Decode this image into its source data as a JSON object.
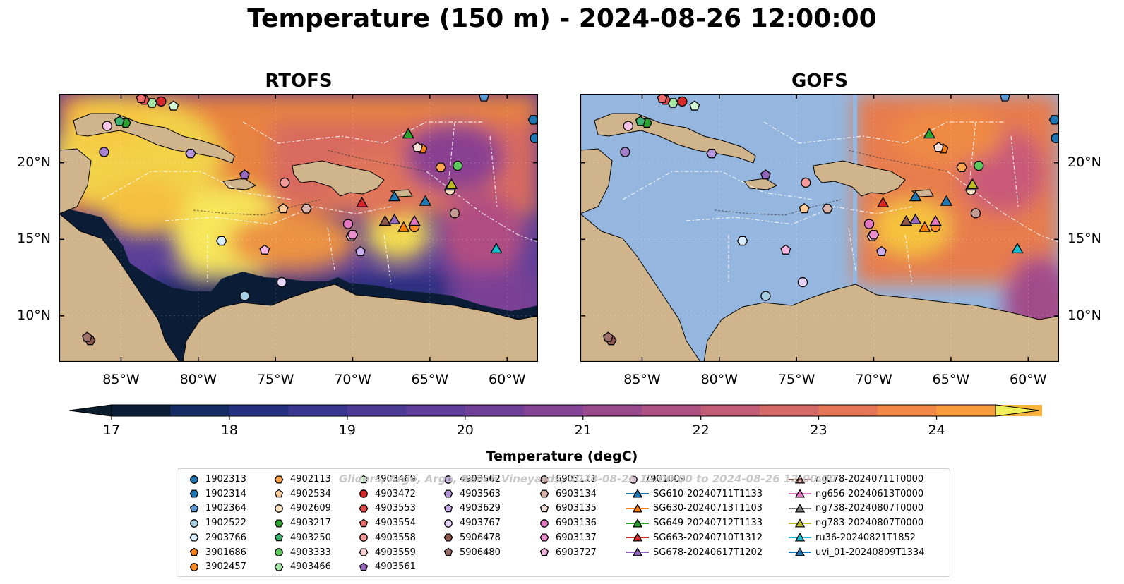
{
  "title": "Temperature (150 m) - 2024-08-26 12:00:00",
  "panels": [
    {
      "id": "rtofs",
      "title": "RTOFS"
    },
    {
      "id": "gofs",
      "title": "GOFS"
    }
  ],
  "map_extent": {
    "lon": [
      -89,
      -58
    ],
    "lat": [
      7,
      24.5
    ]
  },
  "lon_ticks": [
    -85,
    -80,
    -75,
    -70,
    -65,
    -60
  ],
  "lon_tick_labels": [
    "85°W",
    "80°W",
    "75°W",
    "70°W",
    "65°W",
    "60°W"
  ],
  "lat_ticks": [
    10,
    15,
    20
  ],
  "lat_tick_labels": [
    "10°N",
    "15°N",
    "20°N"
  ],
  "colorbar": {
    "label": "Temperature (degC)",
    "min": 17,
    "max": 24.5,
    "step": 0.5,
    "ticks": [
      17,
      18,
      19,
      20,
      21,
      22,
      23,
      24
    ],
    "tick_labels": [
      "17",
      "18",
      "19",
      "20",
      "21",
      "22",
      "23",
      "24"
    ],
    "colors": [
      "#0b1d36",
      "#142b63",
      "#24307f",
      "#38368f",
      "#4b3a96",
      "#5e3e99",
      "#703f98",
      "#844394",
      "#984a8c",
      "#ad5282",
      "#c15d76",
      "#d46a68",
      "#e57758",
      "#f18848",
      "#f79c3c",
      "#fab23a",
      "#f7c843"
    ],
    "extend_low_color": "#0b1d2c",
    "extend_high_color": "#eff15a"
  },
  "land_color": "#d0b48c",
  "nodata_color": "#94b6df",
  "watermark": "Gliders, Argo, Argo, Bench Vineyards, 2024-08-26 12:00:00 to 2024-08-26 12:00:00",
  "legend": {
    "columns": [
      [
        {
          "label": "1902313",
          "marker": "circle",
          "color": "#1f77b4"
        },
        {
          "label": "1902314",
          "marker": "hexagon",
          "color": "#1f77b4"
        },
        {
          "label": "1902364",
          "marker": "pentagon",
          "color": "#5b9bd5"
        },
        {
          "label": "1902522",
          "marker": "circle",
          "color": "#a6cee3"
        },
        {
          "label": "2903766",
          "marker": "hexagon",
          "color": "#d7ecfa"
        },
        {
          "label": "3901686",
          "marker": "pentagon",
          "color": "#ff7f0e"
        },
        {
          "label": "3902457",
          "marker": "circle",
          "color": "#ff8c29"
        }
      ],
      [
        {
          "label": "4902113",
          "marker": "hexagon",
          "color": "#ffa54f"
        },
        {
          "label": "4902534",
          "marker": "pentagon",
          "color": "#ffcc99"
        },
        {
          "label": "4902609",
          "marker": "circle",
          "color": "#ffe4c4"
        },
        {
          "label": "4903217",
          "marker": "hexagon",
          "color": "#2ca02c"
        },
        {
          "label": "4903250",
          "marker": "pentagon",
          "color": "#3cb371"
        },
        {
          "label": "4903333",
          "marker": "circle",
          "color": "#5cc85c"
        },
        {
          "label": "4903466",
          "marker": "hexagon",
          "color": "#a8e6a8"
        }
      ],
      [
        {
          "label": "4903469",
          "marker": "pentagon",
          "color": "#d4f7d4"
        },
        {
          "label": "4903472",
          "marker": "circle",
          "color": "#d62728"
        },
        {
          "label": "4903553",
          "marker": "hexagon",
          "color": "#e04a4a"
        },
        {
          "label": "4903554",
          "marker": "pentagon",
          "color": "#ec6b6b"
        },
        {
          "label": "4903558",
          "marker": "circle",
          "color": "#f59a9a"
        },
        {
          "label": "4903559",
          "marker": "hexagon",
          "color": "#fcd0d0"
        },
        {
          "label": "4903561",
          "marker": "pentagon",
          "color": "#9467bd"
        }
      ],
      [
        {
          "label": "4903562",
          "marker": "circle",
          "color": "#a57fcc"
        },
        {
          "label": "4903563",
          "marker": "hexagon",
          "color": "#b797dc"
        },
        {
          "label": "4903629",
          "marker": "pentagon",
          "color": "#caaeeb"
        },
        {
          "label": "4903767",
          "marker": "circle",
          "color": "#e6d5f7"
        },
        {
          "label": "5906478",
          "marker": "hexagon",
          "color": "#8c564b"
        },
        {
          "label": "5906480",
          "marker": "pentagon",
          "color": "#a0706a"
        }
      ],
      [
        {
          "label": "6903111",
          "marker": "circle",
          "color": "#c49c94"
        },
        {
          "label": "6903134",
          "marker": "hexagon",
          "color": "#dbb5ad"
        },
        {
          "label": "6903135",
          "marker": "pentagon",
          "color": "#f5e0d9"
        },
        {
          "label": "6903136",
          "marker": "circle",
          "color": "#e377c2"
        },
        {
          "label": "6903137",
          "marker": "hexagon",
          "color": "#ea8fcd"
        },
        {
          "label": "6903727",
          "marker": "pentagon",
          "color": "#f6b6e0"
        }
      ],
      [
        {
          "label": "7901009",
          "marker": "circle",
          "color": "#f7c6e8"
        },
        {
          "label": "SG610-20240711T1133",
          "marker": "triangle",
          "color": "#1f77b4",
          "line": "#1f77b4"
        },
        {
          "label": "SG630-20240713T1103",
          "marker": "triangle",
          "color": "#ff7f0e",
          "line": "#ff7f0e"
        },
        {
          "label": "SG649-20240712T1133",
          "marker": "triangle",
          "color": "#2ca02c",
          "line": "#2ca02c"
        },
        {
          "label": "SG663-20240710T1312",
          "marker": "triangle",
          "color": "#d62728",
          "line": "#d62728"
        },
        {
          "label": "SG678-20240617T1202",
          "marker": "triangle",
          "color": "#9467bd",
          "line": "#9467bd"
        }
      ],
      [
        {
          "label": "ng278-20240711T0000",
          "marker": "triangle",
          "color": "#8c564b",
          "line": "#8c564b"
        },
        {
          "label": "ng656-20240613T0000",
          "marker": "triangle",
          "color": "#e377c2",
          "line": "#e377c2"
        },
        {
          "label": "ng738-20240807T0000",
          "marker": "triangle",
          "color": "#7f7f7f",
          "line": "#7f7f7f"
        },
        {
          "label": "ng783-20240807T0000",
          "marker": "triangle",
          "color": "#bcbd22",
          "line": "#bcbd22"
        },
        {
          "label": "ru36-20240821T1852",
          "marker": "triangle",
          "color": "#17becf",
          "line": "#17becf"
        },
        {
          "label": "uvi_01-20240809T1334",
          "marker": "triangle",
          "color": "#1f77b4",
          "line": "#1f77b4"
        }
      ]
    ]
  },
  "map_markers": [
    {
      "id": "1902313",
      "marker": "circle",
      "color": "#1f77b4",
      "lon": -58.2,
      "lat": 21.6
    },
    {
      "id": "1902314",
      "marker": "hexagon",
      "color": "#1f77b4",
      "lon": -58.3,
      "lat": 22.8
    },
    {
      "id": "1902364",
      "marker": "pentagon",
      "color": "#5b9bd5",
      "lon": -61.5,
      "lat": 24.3
    },
    {
      "id": "1902522",
      "marker": "circle",
      "color": "#a6cee3",
      "lon": -77.0,
      "lat": 11.3
    },
    {
      "id": "2903766",
      "marker": "hexagon",
      "color": "#d7ecfa",
      "lon": -78.5,
      "lat": 14.9
    },
    {
      "id": "3901686",
      "marker": "pentagon",
      "color": "#ff7f0e",
      "lon": -65.5,
      "lat": 20.9
    },
    {
      "id": "3902457",
      "marker": "circle",
      "color": "#ff8c29",
      "lon": -66.0,
      "lat": 15.8
    },
    {
      "id": "4902113",
      "marker": "hexagon",
      "color": "#ffa54f",
      "lon": -64.3,
      "lat": 19.7
    },
    {
      "id": "4902534",
      "marker": "pentagon",
      "color": "#ffcc99",
      "lon": -74.5,
      "lat": 17.0
    },
    {
      "id": "4902609",
      "marker": "circle",
      "color": "#ffe4c4",
      "lon": -63.7,
      "lat": 18.2
    },
    {
      "id": "4903217",
      "marker": "hexagon",
      "color": "#2ca02c",
      "lon": -84.7,
      "lat": 22.6
    },
    {
      "id": "4903250",
      "marker": "pentagon",
      "color": "#3cb371",
      "lon": -85.1,
      "lat": 22.7
    },
    {
      "id": "4903333",
      "marker": "circle",
      "color": "#5cc85c",
      "lon": -63.2,
      "lat": 19.8
    },
    {
      "id": "4903466",
      "marker": "hexagon",
      "color": "#a8e6a8",
      "lon": -83.0,
      "lat": 23.9
    },
    {
      "id": "4903469",
      "marker": "pentagon",
      "color": "#d4f7d4",
      "lon": -81.6,
      "lat": 23.7
    },
    {
      "id": "4903472",
      "marker": "circle",
      "color": "#d62728",
      "lon": -82.4,
      "lat": 24.0
    },
    {
      "id": "4903553",
      "marker": "hexagon",
      "color": "#e04a4a",
      "lon": -83.5,
      "lat": 24.1
    },
    {
      "id": "4903554",
      "marker": "pentagon",
      "color": "#ec6b6b",
      "lon": -83.7,
      "lat": 24.2
    },
    {
      "id": "4903558",
      "marker": "circle",
      "color": "#f59a9a",
      "lon": -74.4,
      "lat": 18.7
    },
    {
      "id": "4903559",
      "marker": "hexagon",
      "color": "#fcd0d0",
      "lon": -70.1,
      "lat": 15.2
    },
    {
      "id": "4903561",
      "marker": "pentagon",
      "color": "#9467bd",
      "lon": -77.0,
      "lat": 19.2
    },
    {
      "id": "4903562",
      "marker": "circle",
      "color": "#a57fcc",
      "lon": -86.1,
      "lat": 20.7
    },
    {
      "id": "4903563",
      "marker": "hexagon",
      "color": "#b797dc",
      "lon": -80.5,
      "lat": 20.6
    },
    {
      "id": "4903629",
      "marker": "pentagon",
      "color": "#caaeeb",
      "lon": -69.5,
      "lat": 14.2
    },
    {
      "id": "4903767",
      "marker": "circle",
      "color": "#e6d5f7",
      "lon": -74.6,
      "lat": 12.2
    },
    {
      "id": "5906478",
      "marker": "hexagon",
      "color": "#8c564b",
      "lon": -87.0,
      "lat": 8.4
    },
    {
      "id": "5906480",
      "marker": "pentagon",
      "color": "#a0706a",
      "lon": -87.2,
      "lat": 8.6
    },
    {
      "id": "6903111",
      "marker": "circle",
      "color": "#c49c94",
      "lon": -63.4,
      "lat": 16.7
    },
    {
      "id": "6903134",
      "marker": "hexagon",
      "color": "#dbb5ad",
      "lon": -73.0,
      "lat": 17.0
    },
    {
      "id": "6903135",
      "marker": "pentagon",
      "color": "#f5e0d9",
      "lon": -65.8,
      "lat": 21.0
    },
    {
      "id": "6903136",
      "marker": "circle",
      "color": "#e377c2",
      "lon": -70.3,
      "lat": 16.0
    },
    {
      "id": "6903137",
      "marker": "hexagon",
      "color": "#ea8fcd",
      "lon": -70.0,
      "lat": 15.3
    },
    {
      "id": "6903727",
      "marker": "pentagon",
      "color": "#f6b6e0",
      "lon": -75.7,
      "lat": 14.3
    },
    {
      "id": "7901009",
      "marker": "circle",
      "color": "#f7c6e8",
      "lon": -85.9,
      "lat": 22.4
    },
    {
      "id": "SG610-20240711T1133",
      "marker": "triangle",
      "color": "#1f77b4",
      "lon": -67.3,
      "lat": 17.8
    },
    {
      "id": "SG630-20240713T1103",
      "marker": "triangle",
      "color": "#ff7f0e",
      "lon": -66.7,
      "lat": 15.8
    },
    {
      "id": "SG649-20240712T1133",
      "marker": "triangle",
      "color": "#2ca02c",
      "lon": -66.4,
      "lat": 21.9
    },
    {
      "id": "SG663-20240710T1312",
      "marker": "triangle",
      "color": "#d62728",
      "lon": -69.4,
      "lat": 17.4
    },
    {
      "id": "SG678-20240617T1202",
      "marker": "triangle",
      "color": "#9467bd",
      "lon": -67.3,
      "lat": 16.3
    },
    {
      "id": "ng278-20240711T0000",
      "marker": "triangle",
      "color": "#8c564b",
      "lon": -67.9,
      "lat": 16.2
    },
    {
      "id": "ng656-20240613T0000",
      "marker": "triangle",
      "color": "#e377c2",
      "lon": -66.0,
      "lat": 16.2
    },
    {
      "id": "ng738-20240807T0000",
      "marker": "triangle",
      "color": "#7f7f7f",
      "lon": -63.7,
      "lat": 18.5
    },
    {
      "id": "ng783-20240807T0000",
      "marker": "triangle",
      "color": "#bcbd22",
      "lon": -63.6,
      "lat": 18.6
    },
    {
      "id": "ru36-20240821T1852",
      "marker": "triangle",
      "color": "#17becf",
      "lon": -60.7,
      "lat": 14.4
    },
    {
      "id": "uvi_01-20240809T1334",
      "marker": "triangle",
      "color": "#1f77b4",
      "lon": -65.3,
      "lat": 17.5
    }
  ]
}
